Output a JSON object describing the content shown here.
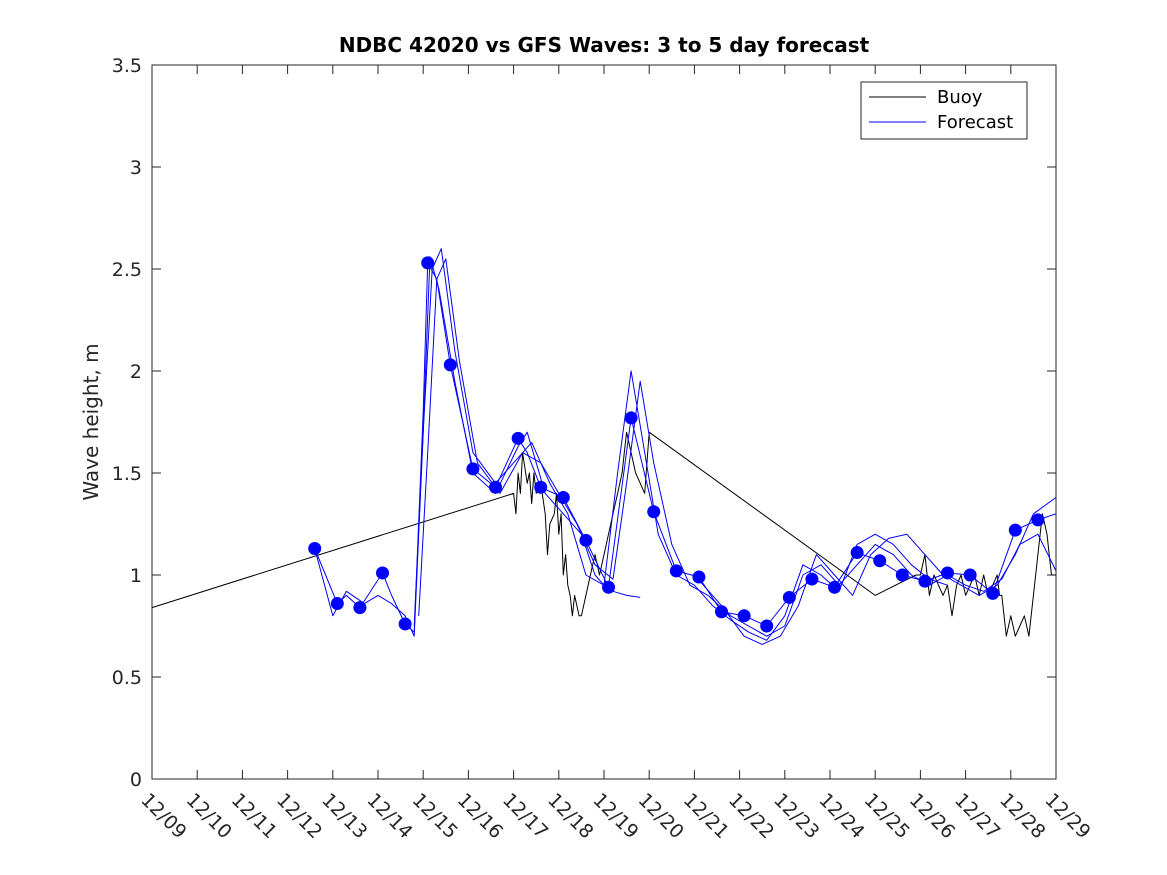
{
  "chart_data": {
    "type": "line",
    "title": "NDBC 42020 vs GFS Waves: 3 to 5 day forecast",
    "xlabel": "",
    "ylabel": "Wave height, m",
    "x_ticks": [
      "12/09",
      "12/10",
      "12/11",
      "12/12",
      "12/13",
      "12/14",
      "12/15",
      "12/16",
      "12/17",
      "12/18",
      "12/19",
      "12/20",
      "12/21",
      "12/22",
      "12/23",
      "12/24",
      "12/25",
      "12/26",
      "12/27",
      "12/28",
      "12/29"
    ],
    "y_ticks": [
      "0",
      "0.5",
      "1",
      "1.5",
      "2",
      "2.5",
      "3",
      "3.5"
    ],
    "xlim_days": [
      0,
      20
    ],
    "ylim": [
      0,
      3.5
    ],
    "legend": {
      "placement": "top-right",
      "entries": [
        "Buoy",
        "Forecast"
      ]
    },
    "colors": {
      "buoy": "#000000",
      "forecast": "#0000ff",
      "axes": "#262626"
    },
    "series": [
      {
        "name": "Buoy",
        "x": [
          0,
          8.0,
          8.05,
          8.1,
          8.15,
          8.2,
          8.3,
          8.35,
          8.4,
          8.45,
          8.5,
          8.6,
          8.7,
          8.75,
          8.8,
          8.9,
          8.95,
          9.0,
          9.05,
          9.1,
          9.15,
          9.2,
          9.25,
          9.3,
          9.35,
          9.45,
          9.5,
          9.6,
          9.7,
          9.8,
          9.9,
          10.0,
          10.1,
          10.2,
          10.3,
          10.4,
          10.45,
          10.5,
          10.6,
          10.7,
          10.8,
          10.9,
          11.0,
          16.0,
          16.9,
          17.0,
          17.1,
          17.2,
          17.3,
          17.4,
          17.5,
          17.6,
          17.7,
          17.8,
          17.9,
          18.0,
          18.1,
          18.2,
          18.3,
          18.4,
          18.5,
          18.6,
          18.7,
          18.75,
          18.8,
          18.9,
          19.0,
          19.1,
          19.2,
          19.3,
          19.4,
          19.5,
          19.6,
          19.7,
          19.8,
          19.85,
          19.9,
          20.0
        ],
        "y": [
          0.84,
          1.4,
          1.3,
          1.5,
          1.4,
          1.6,
          1.45,
          1.5,
          1.35,
          1.5,
          1.4,
          1.45,
          1.3,
          1.1,
          1.25,
          1.3,
          1.4,
          1.2,
          1.3,
          1.0,
          1.1,
          0.95,
          0.9,
          0.8,
          0.9,
          0.8,
          0.8,
          0.9,
          1.0,
          1.1,
          1.0,
          1.1,
          1.2,
          1.3,
          1.4,
          1.5,
          1.6,
          1.7,
          1.6,
          1.5,
          1.45,
          1.4,
          1.7,
          0.9,
          1.0,
          1.0,
          1.1,
          0.9,
          1.0,
          0.95,
          0.9,
          0.95,
          0.8,
          0.95,
          1.0,
          0.9,
          0.95,
          1.0,
          0.9,
          1.0,
          0.9,
          0.95,
          1.0,
          0.9,
          0.9,
          0.7,
          0.8,
          0.7,
          0.75,
          0.8,
          0.7,
          0.9,
          1.1,
          1.3,
          1.2,
          1.1,
          1.0,
          1.0
        ]
      },
      {
        "name": "Forecast",
        "x": [
          3.6,
          4.1,
          4.3,
          4.6,
          5.1,
          5.3,
          5.6,
          5.8,
          6.0,
          6.1,
          6.3,
          6.6,
          7.1,
          7.6,
          8.1,
          8.3,
          8.6,
          9.1,
          9.6,
          10.1,
          10.6,
          11.1,
          11.6,
          12.1,
          12.6,
          13.1,
          13.6,
          14.1,
          14.6,
          15.1,
          15.6,
          16.1,
          16.6,
          17.1,
          17.6,
          18.1,
          18.6,
          19.1,
          19.6,
          20.0
        ],
        "y": [
          1.13,
          0.86,
          0.9,
          0.84,
          1.01,
          0.9,
          0.76,
          0.72,
          1.8,
          2.53,
          2.45,
          2.03,
          1.52,
          1.43,
          1.67,
          1.6,
          1.43,
          1.38,
          1.17,
          0.94,
          1.77,
          1.31,
          1.02,
          0.99,
          0.82,
          0.8,
          0.75,
          0.89,
          0.98,
          0.94,
          1.11,
          1.07,
          1.0,
          0.97,
          1.01,
          1.0,
          0.91,
          1.22,
          1.27,
          1.3
        ]
      },
      {
        "name": "Forecast",
        "x": [
          3.6,
          4.0,
          4.3,
          4.7,
          5.0,
          5.3,
          5.6,
          5.8,
          6.0,
          6.15,
          6.35,
          6.7,
          7.1,
          7.6,
          8.1,
          8.3,
          8.7,
          9.1,
          9.5,
          9.8,
          10.0,
          10.2,
          10.5,
          10.8
        ],
        "y": [
          1.13,
          0.8,
          0.92,
          0.86,
          0.9,
          0.86,
          0.8,
          0.7,
          1.7,
          2.56,
          2.4,
          1.95,
          1.5,
          1.4,
          1.63,
          1.7,
          1.4,
          1.3,
          1.2,
          1.0,
          0.95,
          0.92,
          0.9,
          0.89
        ]
      },
      {
        "name": "Forecast",
        "x": [
          5.8,
          6.0,
          6.2,
          6.4,
          6.7,
          7.1,
          7.6,
          8.0,
          8.4,
          8.8,
          9.2,
          9.6,
          10.0,
          10.3,
          10.6,
          10.9,
          11.2,
          11.6,
          12.0,
          12.4,
          12.8,
          13.2,
          13.6,
          14.0,
          14.4,
          14.8,
          15.2,
          15.6,
          16.0,
          16.4,
          16.8,
          17.2,
          17.6
        ],
        "y": [
          0.75,
          1.7,
          2.5,
          2.6,
          2.1,
          1.6,
          1.45,
          1.55,
          1.65,
          1.45,
          1.3,
          1.0,
          0.95,
          1.5,
          2.0,
          1.6,
          1.2,
          1.0,
          0.95,
          0.85,
          0.78,
          0.72,
          0.68,
          0.8,
          1.05,
          1.0,
          0.92,
          1.15,
          1.2,
          1.15,
          1.05,
          0.98,
          0.95
        ]
      },
      {
        "name": "Forecast",
        "x": [
          5.9,
          6.1,
          6.3,
          6.5,
          6.8,
          7.2,
          7.7,
          8.2,
          8.6,
          9.0,
          9.4,
          9.8,
          10.2,
          10.5,
          10.8,
          11.1,
          11.5,
          11.9,
          12.3,
          12.7,
          13.1,
          13.5,
          13.9,
          14.3,
          14.7,
          15.1,
          15.5,
          15.9,
          16.3,
          16.7,
          17.1,
          17.5,
          17.9,
          18.3,
          18.7,
          19.1,
          19.5,
          20.0
        ],
        "y": [
          0.8,
          1.6,
          2.45,
          2.55,
          2.05,
          1.55,
          1.4,
          1.6,
          1.55,
          1.4,
          1.25,
          1.05,
          0.98,
          1.45,
          1.95,
          1.55,
          1.15,
          0.95,
          0.9,
          0.82,
          0.7,
          0.66,
          0.7,
          0.85,
          1.1,
          1.0,
          0.9,
          1.1,
          1.18,
          1.2,
          1.1,
          1.0,
          0.95,
          0.9,
          0.95,
          1.1,
          1.3,
          1.38
        ]
      },
      {
        "name": "Forecast",
        "x": [
          12.0,
          12.4,
          12.8,
          13.2,
          13.6,
          14.0,
          14.4,
          14.8,
          15.2,
          15.6,
          16.0,
          16.4,
          16.8,
          17.2,
          17.6,
          18.0,
          18.4,
          18.8,
          19.2,
          19.6,
          20.0
        ],
        "y": [
          1.0,
          0.9,
          0.8,
          0.75,
          0.7,
          0.75,
          1.0,
          1.05,
          0.95,
          1.05,
          1.15,
          1.1,
          1.0,
          0.95,
          1.0,
          0.95,
          0.92,
          0.98,
          1.15,
          1.2,
          1.02
        ]
      }
    ],
    "markers": {
      "series": "Forecast",
      "x": [
        3.6,
        4.1,
        4.6,
        5.1,
        5.6,
        6.1,
        6.6,
        7.1,
        7.6,
        8.1,
        8.6,
        9.1,
        9.6,
        10.1,
        10.6,
        11.1,
        11.6,
        12.1,
        12.6,
        13.1,
        13.6,
        14.1,
        14.6,
        15.1,
        15.6,
        16.1,
        16.6,
        17.1,
        17.6,
        18.1,
        18.6,
        19.1,
        19.6
      ],
      "y": [
        1.13,
        0.86,
        0.84,
        1.01,
        0.76,
        2.53,
        2.03,
        1.52,
        1.43,
        1.67,
        1.43,
        1.38,
        1.17,
        0.94,
        1.77,
        1.31,
        1.02,
        0.99,
        0.82,
        0.8,
        0.75,
        0.89,
        0.98,
        0.94,
        1.11,
        1.07,
        1.0,
        0.97,
        1.01,
        1.0,
        0.91,
        1.22,
        1.27
      ]
    }
  }
}
